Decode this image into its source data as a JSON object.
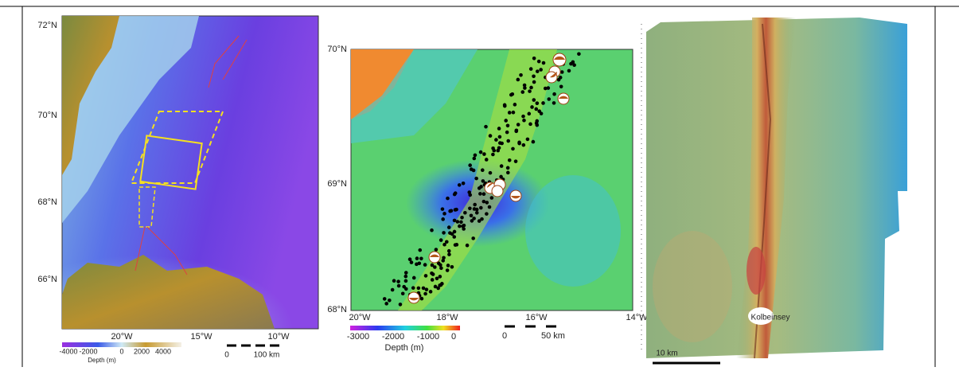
{
  "panel_a": {
    "lat_labels": [
      "72°N",
      "70°N",
      "68°N",
      "66°N"
    ],
    "lon_labels": [
      "20°W",
      "15°W",
      "10°W"
    ],
    "colorbar_labels": [
      "-4000",
      "-2000",
      "0",
      "2000",
      "4000"
    ],
    "colorbar_title": "Depth (m)",
    "scale_labels": [
      "0",
      "100 km"
    ]
  },
  "panel_b": {
    "lat_labels": [
      "70°N",
      "69°N",
      "68°N"
    ],
    "lon_labels": [
      "20°W",
      "18°W",
      "16°W",
      "14°W"
    ],
    "colorbar_labels": [
      "-3000",
      "-2000",
      "-1000",
      "0"
    ],
    "colorbar_title": "Depth (m)",
    "scale_labels": [
      "0",
      "50 km"
    ]
  },
  "panel_c": {
    "place_label": "Kolbeinsey",
    "scale_label": "10 km"
  }
}
